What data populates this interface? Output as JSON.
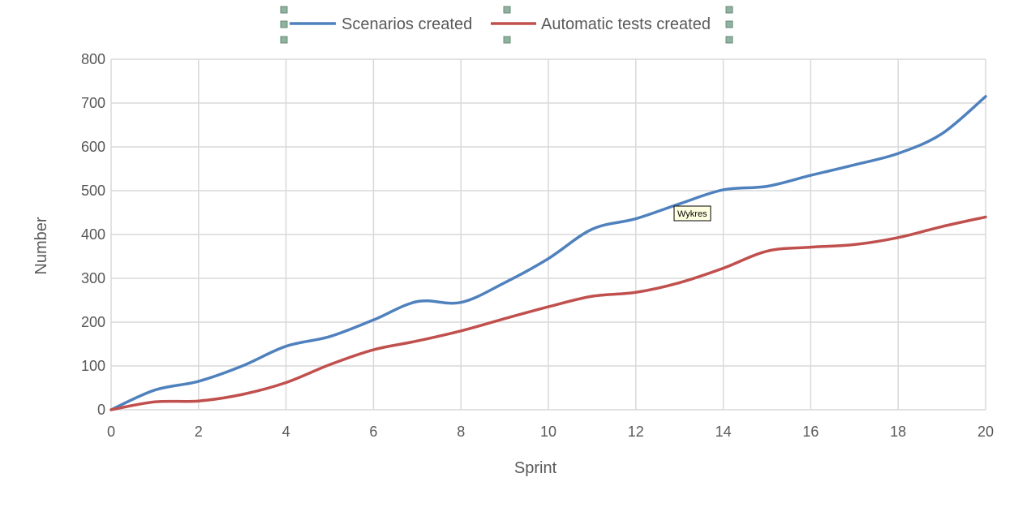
{
  "chart_data": {
    "type": "line",
    "title": "",
    "xlabel": "Sprint",
    "ylabel": "Number",
    "xlim": [
      0,
      20
    ],
    "ylim": [
      0,
      800
    ],
    "x_ticks": [
      0,
      2,
      4,
      6,
      8,
      10,
      12,
      14,
      16,
      18,
      20
    ],
    "y_ticks": [
      0,
      100,
      200,
      300,
      400,
      500,
      600,
      700,
      800
    ],
    "grid": true,
    "smooth": true,
    "legend_position": "top",
    "x": [
      0,
      1,
      2,
      3,
      4,
      5,
      6,
      7,
      8,
      9,
      10,
      11,
      12,
      13,
      14,
      15,
      16,
      17,
      18,
      19,
      20
    ],
    "series": [
      {
        "name": "Scenarios created",
        "color": "#4f81bd",
        "values": [
          0,
          45,
          65,
          100,
          145,
          167,
          205,
          247,
          245,
          290,
          345,
          412,
          436,
          470,
          502,
          510,
          535,
          559,
          585,
          630,
          715
        ]
      },
      {
        "name": "Automatic tests created",
        "color": "#c0504d",
        "values": [
          0,
          18,
          20,
          35,
          62,
          103,
          137,
          157,
          180,
          208,
          235,
          259,
          268,
          290,
          323,
          362,
          371,
          377,
          393,
          418,
          440
        ]
      }
    ]
  },
  "tooltip": {
    "text": "Wykres"
  }
}
